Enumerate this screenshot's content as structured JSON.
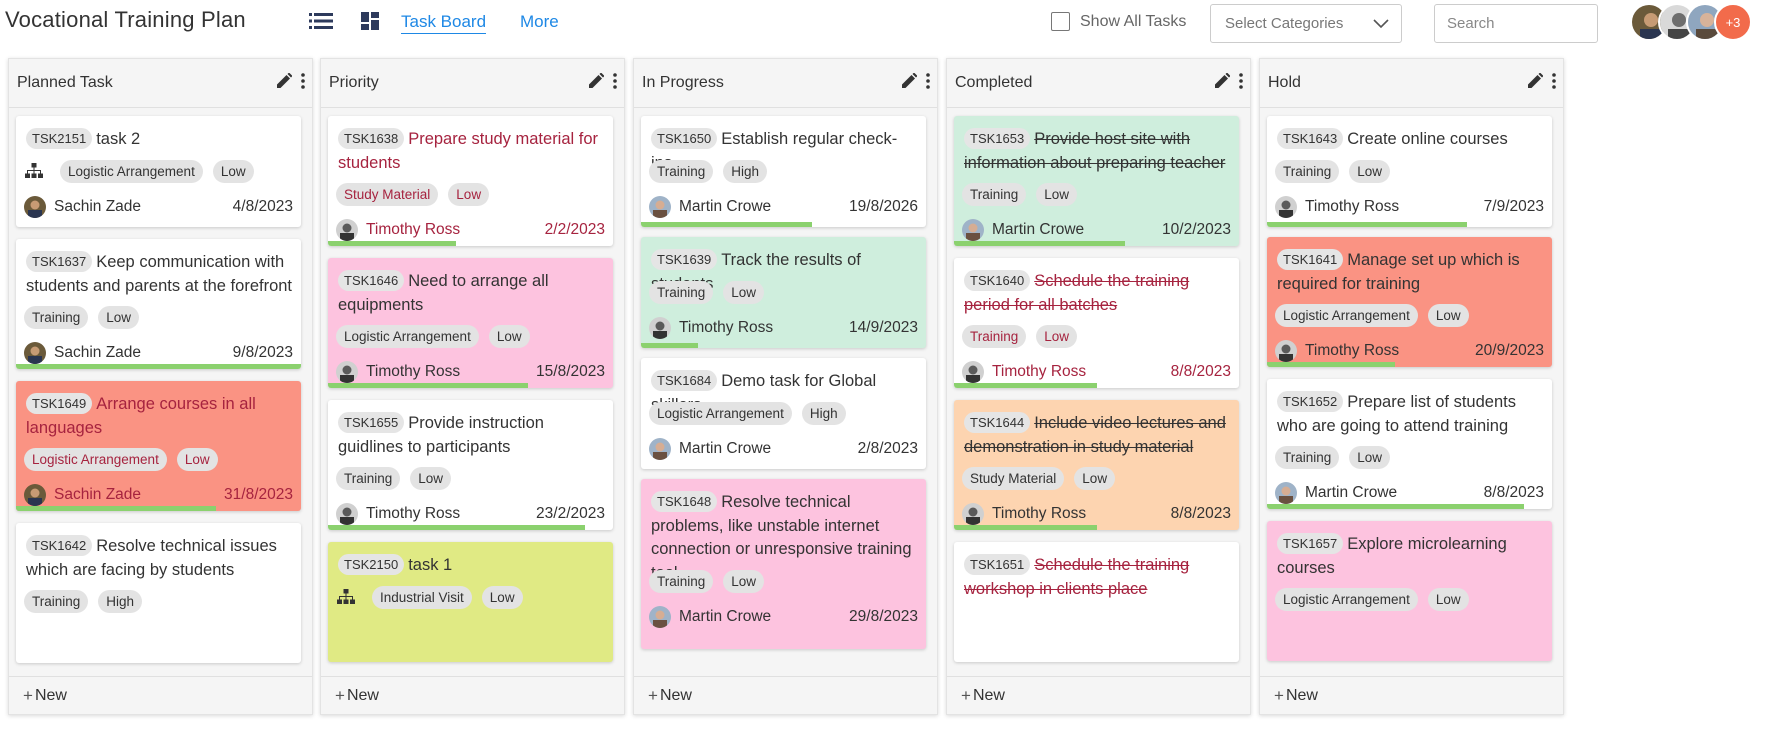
{
  "app": {
    "title": "Vocational Training Plan",
    "nav": {
      "task_board": "Task Board",
      "more": "More"
    },
    "show_all_label": "Show All Tasks",
    "category_select": "Select Categories",
    "search_placeholder": "Search",
    "extra_members": "+3"
  },
  "new_label": "New",
  "columns": [
    {
      "title": "Planned Task",
      "cards": [
        {
          "id": "TSK2151",
          "title": "task 2",
          "tags": [
            "Logistic Arrangement",
            "Low"
          ],
          "owner": "Sachin Zade",
          "due": "4/8/2023"
        },
        {
          "id": "TSK1637",
          "title": "Keep communication with students and parents at the forefront",
          "tags": [
            "Training",
            "Low"
          ],
          "owner": "Sachin Zade",
          "due": "9/8/2023",
          "progress": 1.0
        },
        {
          "id": "TSK1649",
          "title": "Arrange courses in all languages",
          "tags": [
            "Logistic Arrangement",
            "Low"
          ],
          "owner": "Sachin Zade",
          "due": "31/8/2023",
          "progress": 0.7
        },
        {
          "id": "TSK1642",
          "title": "Resolve technical issues which are facing by students",
          "tags": [
            "Training",
            "High"
          ],
          "owner": "",
          "due": ""
        }
      ]
    },
    {
      "title": "Priority",
      "cards": [
        {
          "id": "TSK1638",
          "title": "Prepare study material for students",
          "tags": [
            "Study Material",
            "Low"
          ],
          "owner": "Timothy Ross",
          "due": "2/2/2023",
          "progress": 0.45
        },
        {
          "id": "TSK1646",
          "title": "Need to arrange all equipments",
          "tags": [
            "Logistic Arrangement",
            "Low"
          ],
          "owner": "Timothy Ross",
          "due": "15/8/2023",
          "progress": 0.7
        },
        {
          "id": "TSK1655",
          "title": "Provide instruction guidlines to participants",
          "tags": [
            "Training",
            "Low"
          ],
          "owner": "Timothy Ross",
          "due": "23/2/2023",
          "progress": 0.9
        },
        {
          "id": "TSK2150",
          "title": "task 1",
          "tags": [
            "Industrial Visit",
            "Low"
          ],
          "owner": "",
          "due": ""
        }
      ]
    },
    {
      "title": "In Progress",
      "cards": [
        {
          "id": "TSK1650",
          "title": "Establish regular check-ins",
          "tags": [
            "Training",
            "High"
          ],
          "owner": "Martin Crowe",
          "due": "19/8/2026",
          "progress": 0.6
        },
        {
          "id": "TSK1639",
          "title": "Track the results of students",
          "tags": [
            "Training",
            "Low"
          ],
          "owner": "Timothy Ross",
          "due": "14/9/2023",
          "progress": 0.2
        },
        {
          "id": "TSK1684",
          "title": "Demo task for Global skillers",
          "tags": [
            "Logistic Arrangement",
            "High"
          ],
          "owner": "Martin Crowe",
          "due": "2/8/2023"
        },
        {
          "id": "TSK1648",
          "title": "Resolve technical problems, like unstable internet connection or unresponsive training tool",
          "tags": [
            "Training",
            "Low"
          ],
          "owner": "Martin Crowe",
          "due": "29/8/2023"
        }
      ]
    },
    {
      "title": "Completed",
      "cards": [
        {
          "id": "TSK1653",
          "title": "Provide host site with information about preparing teacher",
          "tags": [
            "Training",
            "Low"
          ],
          "owner": "Martin Crowe",
          "due": "10/2/2023",
          "progress": 0.6
        },
        {
          "id": "TSK1640",
          "title": "Schedule the training period for all batches",
          "tags": [
            "Training",
            "Low"
          ],
          "owner": "Timothy Ross",
          "due": "8/8/2023",
          "progress": 0.5
        },
        {
          "id": "TSK1644",
          "title": "Include video lectures and demonstration in study material",
          "tags": [
            "Study Material",
            "Low"
          ],
          "owner": "Timothy Ross",
          "due": "8/8/2023",
          "progress": 0.5
        },
        {
          "id": "TSK1651",
          "title": "Schedule the training workshop in clients place",
          "tags": [],
          "owner": "",
          "due": ""
        }
      ]
    },
    {
      "title": "Hold",
      "cards": [
        {
          "id": "TSK1643",
          "title": "Create online courses",
          "tags": [
            "Training",
            "Low"
          ],
          "owner": "Timothy Ross",
          "due": "7/9/2023",
          "progress": 0.7
        },
        {
          "id": "TSK1641",
          "title": "Manage set up which is required for training",
          "tags": [
            "Logistic Arrangement",
            "Low"
          ],
          "owner": "Timothy Ross",
          "due": "20/9/2023",
          "progress": 0.45
        },
        {
          "id": "TSK1652",
          "title": "Prepare list of students who are going to attend training",
          "tags": [
            "Training",
            "Low"
          ],
          "owner": "Martin Crowe",
          "due": "8/8/2023",
          "progress": 0.9
        },
        {
          "id": "TSK1657",
          "title": "Explore microlearning courses",
          "tags": [
            "Logistic Arrangement",
            "Low"
          ],
          "owner": "",
          "due": ""
        }
      ]
    }
  ]
}
